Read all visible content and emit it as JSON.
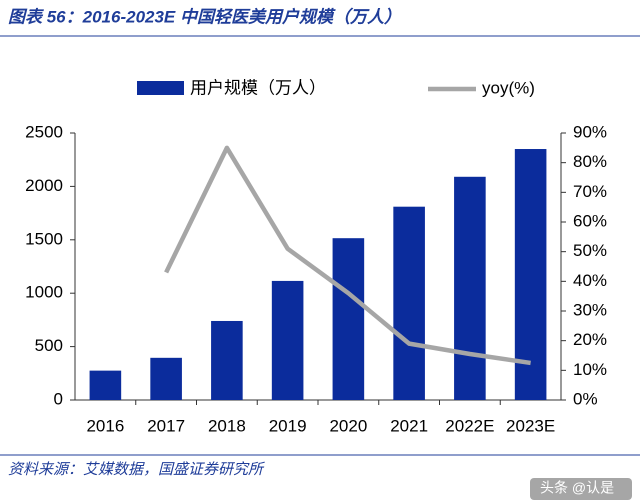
{
  "chart_data": {
    "type": "bar_line",
    "title": "图表 56：2016-2023E 中国轻医美用户规模（万人）",
    "source": "资料来源：艾媒数据，国盛证券研究所",
    "watermark": "头条 @认是",
    "categories": [
      "2016",
      "2017",
      "2018",
      "2019",
      "2020",
      "2021",
      "2022E",
      "2023E"
    ],
    "series": [
      {
        "name": "用户规模（万人）",
        "color": "#0b2c9c",
        "values": [
          275,
          395,
          740,
          1115,
          1515,
          1810,
          2090,
          2350
        ]
      },
      {
        "name": "yoy(%)",
        "color": "#a6a6a6",
        "axis": "y2",
        "values": [
          null,
          43,
          85,
          51,
          36,
          19,
          15.5,
          12.5
        ]
      }
    ],
    "ylim": [
      0,
      2500
    ],
    "yticks": [
      0,
      500,
      1000,
      1500,
      2000,
      2500
    ],
    "y2lim": [
      0,
      90
    ],
    "y2ticks": [
      {
        "value": 0,
        "label": "0%"
      },
      {
        "value": 10,
        "label": "10%"
      },
      {
        "value": 20,
        "label": "20%"
      },
      {
        "value": 30,
        "label": "30%"
      },
      {
        "value": 40,
        "label": "40%"
      },
      {
        "value": 50,
        "label": "50%"
      },
      {
        "value": 60,
        "label": "60%"
      },
      {
        "value": 70,
        "label": "70%"
      },
      {
        "value": 80,
        "label": "80%"
      },
      {
        "value": 90,
        "label": "90%"
      }
    ]
  }
}
